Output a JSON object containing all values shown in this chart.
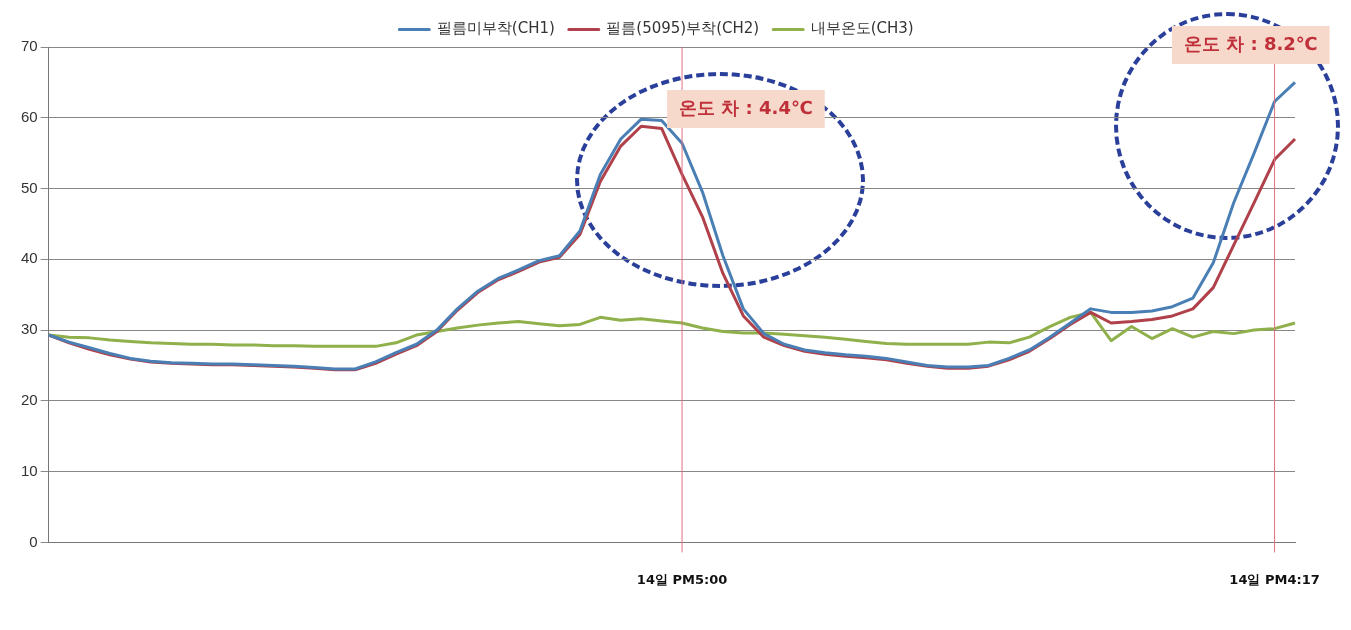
{
  "chart_data": {
    "type": "line",
    "categories": [
      null,
      null,
      null,
      null,
      null,
      null,
      null,
      null,
      null,
      null,
      null,
      null,
      null,
      null,
      null,
      null,
      null,
      null,
      null,
      null,
      null,
      null,
      null,
      null,
      null,
      null,
      null,
      null,
      null,
      null,
      null,
      "14일 PM5:00",
      null,
      null,
      null,
      null,
      null,
      null,
      null,
      null,
      null,
      null,
      null,
      null,
      null,
      null,
      null,
      null,
      null,
      null,
      null,
      null,
      null,
      null,
      null,
      null,
      null,
      null,
      null,
      null,
      "14일 PM4:17",
      null
    ],
    "series": [
      {
        "name": "필름미부착(CH1)",
        "color": "#4a7fb5",
        "values": [
          29.3,
          28.3,
          27.5,
          26.7,
          26,
          25.6,
          25.4,
          25.3,
          25.2,
          25.2,
          25.1,
          25,
          24.9,
          24.7,
          24.5,
          24.5,
          25.5,
          26.8,
          28,
          30,
          33,
          35.5,
          37.3,
          38.5,
          39.8,
          40.5,
          44,
          52,
          57,
          59.8,
          59.6,
          56.4,
          49.5,
          40.5,
          33,
          29.5,
          28,
          27.2,
          26.8,
          26.5,
          26.3,
          26,
          25.5,
          25,
          24.8,
          24.8,
          25,
          26,
          27.2,
          29,
          31,
          33,
          32.5,
          32.5,
          32.7,
          33.3,
          34.5,
          39.5,
          48,
          55,
          62.3,
          65
        ]
      },
      {
        "name": "필름(5095)부착(CH2)",
        "color": "#b0404a",
        "values": [
          29.3,
          28.2,
          27.3,
          26.5,
          25.9,
          25.5,
          25.3,
          25.2,
          25.1,
          25.1,
          25,
          24.9,
          24.8,
          24.6,
          24.4,
          24.4,
          25.3,
          26.6,
          27.8,
          29.8,
          32.8,
          35.3,
          37.1,
          38.3,
          39.6,
          40.3,
          43.5,
          51,
          56,
          58.8,
          58.5,
          52,
          46,
          38,
          32,
          29,
          27.8,
          27,
          26.6,
          26.3,
          26.1,
          25.8,
          25.3,
          24.9,
          24.6,
          24.6,
          24.9,
          25.8,
          27,
          28.8,
          30.8,
          32.5,
          31,
          31.2,
          31.5,
          32,
          33,
          36,
          42,
          48,
          54.1,
          57
        ]
      },
      {
        "name": "내부온도(CH3)",
        "color": "#8fb04a",
        "values": [
          29.3,
          29,
          28.9,
          28.6,
          28.4,
          28.2,
          28.1,
          28,
          28,
          27.9,
          27.9,
          27.8,
          27.8,
          27.7,
          27.7,
          27.7,
          27.7,
          28.2,
          29.3,
          29.8,
          30.3,
          30.7,
          31,
          31.2,
          30.9,
          30.6,
          30.8,
          31.8,
          31.4,
          31.6,
          31.3,
          31,
          30.3,
          29.8,
          29.6,
          29.6,
          29.4,
          29.2,
          29,
          28.7,
          28.4,
          28.1,
          28,
          28,
          28,
          28,
          28.3,
          28.2,
          29,
          30.5,
          31.8,
          32.5,
          28.5,
          30.5,
          28.8,
          30.2,
          29,
          29.8,
          29.5,
          30,
          30.2,
          31
        ]
      }
    ],
    "ylim": [
      0,
      70
    ],
    "yticks": [
      0,
      10,
      20,
      30,
      40,
      50,
      60,
      70
    ],
    "grid": "y",
    "legend": "top",
    "marker": "none",
    "line_style": "solid",
    "ref_lines": [
      {
        "axis": "x",
        "value": "14일 PM5:00",
        "color": "#e07080"
      },
      {
        "axis": "x",
        "value": "14일 PM4:17",
        "color": "#e07080"
      }
    ],
    "annotations": [
      "온도 차 : 4.4℃",
      "온도 차 : 8.2℃"
    ]
  }
}
